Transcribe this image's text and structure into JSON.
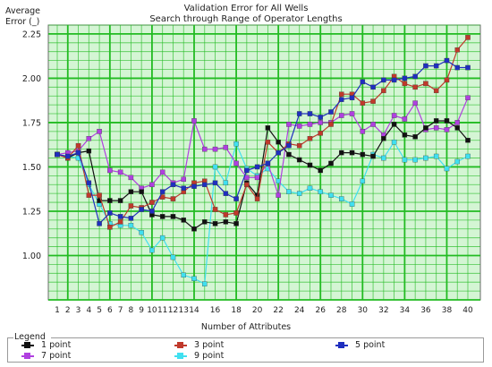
{
  "chart_data": {
    "type": "line",
    "title": "Validation Error for All Wells",
    "subtitle": "Search through Range of Operator Lengths",
    "ylabel_line1": "Average",
    "ylabel_line2": "Error (_)",
    "xlabel": "Number of Attributes",
    "x": [
      1,
      2,
      3,
      4,
      5,
      6,
      7,
      8,
      9,
      10,
      11,
      12,
      13,
      14,
      15,
      16,
      17,
      18,
      19,
      20,
      21,
      22,
      23,
      24,
      25,
      26,
      27,
      28,
      29,
      30,
      31,
      32,
      33,
      34,
      35,
      36,
      37,
      38,
      39,
      40
    ],
    "xlim": [
      1,
      40
    ],
    "ylim": [
      0.75,
      2.3
    ],
    "y_ticks": [
      1.0,
      1.25,
      1.5,
      1.75,
      2.0,
      2.25
    ],
    "y_tick_labels": [
      "1.00",
      "1.25",
      "1.50",
      "1.75",
      "2.00",
      "2.25"
    ],
    "grid": true,
    "grid_color": "#22bb22",
    "plot_background": "#d4f5d4",
    "legend_title": "Legend",
    "legend_position": "bottom",
    "series": [
      {
        "name": "1 point",
        "color": "#111111",
        "values": [
          1.57,
          1.55,
          1.58,
          1.59,
          1.31,
          1.31,
          1.31,
          1.36,
          1.36,
          1.23,
          1.22,
          1.22,
          1.2,
          1.15,
          1.19,
          1.18,
          1.19,
          1.18,
          1.41,
          1.34,
          1.72,
          1.64,
          1.57,
          1.54,
          1.51,
          1.48,
          1.52,
          1.58,
          1.58,
          1.57,
          1.56,
          1.66,
          1.74,
          1.68,
          1.67,
          1.72,
          1.76,
          1.76,
          1.72,
          1.65
        ]
      },
      {
        "name": "3 point",
        "color": "#c0392b",
        "values": [
          1.57,
          1.55,
          1.62,
          1.34,
          1.34,
          1.16,
          1.19,
          1.28,
          1.27,
          1.3,
          1.33,
          1.32,
          1.36,
          1.41,
          1.42,
          1.26,
          1.23,
          1.24,
          1.4,
          1.32,
          1.64,
          1.58,
          1.63,
          1.62,
          1.66,
          1.69,
          1.74,
          1.91,
          1.91,
          1.86,
          1.87,
          1.93,
          2.01,
          1.97,
          1.95,
          1.97,
          1.93,
          1.99,
          2.16,
          2.23
        ]
      },
      {
        "name": "5 point",
        "color": "#1f2fbf",
        "values": [
          1.57,
          1.56,
          1.58,
          1.41,
          1.18,
          1.24,
          1.22,
          1.21,
          1.26,
          1.25,
          1.36,
          1.4,
          1.38,
          1.39,
          1.4,
          1.41,
          1.35,
          1.32,
          1.48,
          1.5,
          1.52,
          1.58,
          1.62,
          1.8,
          1.8,
          1.78,
          1.81,
          1.88,
          1.89,
          1.98,
          1.95,
          1.99,
          1.99,
          2.0,
          2.01,
          2.07,
          2.07,
          2.1,
          2.06,
          2.06
        ]
      },
      {
        "name": "7 point",
        "color": "#b040e0",
        "values": [
          1.57,
          1.58,
          1.59,
          1.66,
          1.7,
          1.48,
          1.47,
          1.44,
          1.38,
          1.4,
          1.47,
          1.41,
          1.43,
          1.76,
          1.6,
          1.6,
          1.61,
          1.52,
          1.44,
          1.44,
          1.52,
          1.34,
          1.74,
          1.73,
          1.74,
          1.75,
          1.75,
          1.79,
          1.8,
          1.7,
          1.74,
          1.68,
          1.79,
          1.77,
          1.86,
          1.71,
          1.72,
          1.71,
          1.75,
          1.89
        ]
      },
      {
        "name": "9 point",
        "color": "#40e0f0",
        "values": [
          1.57,
          1.56,
          1.55,
          1.4,
          1.29,
          1.18,
          1.17,
          1.17,
          1.13,
          1.03,
          1.1,
          0.99,
          0.89,
          0.87,
          0.84,
          1.5,
          1.41,
          1.63,
          1.49,
          1.45,
          1.49,
          1.42,
          1.36,
          1.35,
          1.38,
          1.36,
          1.34,
          1.32,
          1.29,
          1.42,
          1.57,
          1.55,
          1.64,
          1.54,
          1.54,
          1.55,
          1.56,
          1.49,
          1.53,
          1.56
        ]
      }
    ]
  }
}
